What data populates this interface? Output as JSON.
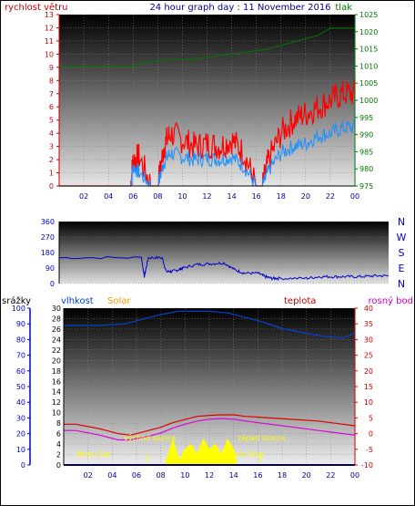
{
  "header": {
    "left_label": "rychlost větru",
    "title": "24 hour graph day : 11 November 2016",
    "right_label": "tlak"
  },
  "panel3_labels": {
    "rain": "srážky",
    "humidity": "vlhkost",
    "solar": "Solar",
    "temp": "teplota",
    "dew": "rosný bod"
  },
  "annotations": {
    "moon_set": "Moon Set",
    "sunrise": "východ slunce",
    "sunset": "západ slunce",
    "moon_rise": "Moon Rise"
  },
  "colors": {
    "wind_left": "#cc0000",
    "title": "#000099",
    "pressure": "#007700",
    "wind_gust": "#ff0000",
    "wind_avg": "#1e90ff",
    "direction": "#0000cc",
    "humidity": "#0044cc",
    "temp": "#dd0000",
    "dew": "#dd00dd",
    "solar": "#ffff00",
    "rain_axis": "#0000cc",
    "temp_axis": "#cc0000"
  },
  "chart_data": [
    {
      "type": "line",
      "x_ticks": [
        "02",
        "04",
        "06",
        "08",
        "10",
        "12",
        "14",
        "16",
        "18",
        "20",
        "22",
        "00"
      ],
      "left_axis": {
        "ticks": [
          "0",
          "1",
          "2",
          "3",
          "4",
          "5",
          "6",
          "7",
          "8",
          "9",
          "10",
          "11",
          "12",
          "13"
        ],
        "ylim": [
          0,
          13
        ]
      },
      "right_axis": {
        "ticks": [
          "975",
          "980",
          "985",
          "990",
          "995",
          "1000",
          "1005",
          "1010",
          "1015",
          "1020",
          "1025"
        ],
        "ylim": [
          975,
          1025
        ]
      },
      "pressure": {
        "x": [
          0,
          6,
          7,
          9,
          11,
          13,
          15,
          17,
          19,
          21,
          22,
          24
        ],
        "y": [
          1010,
          1010,
          1011,
          1012,
          1012,
          1013,
          1014,
          1015,
          1017,
          1019,
          1021,
          1021
        ]
      },
      "gust": {
        "x": [
          0,
          5.8,
          6.0,
          6.5,
          7.5,
          8.0,
          8.5,
          9.0,
          10,
          11,
          12,
          13,
          14,
          15,
          16,
          16.5,
          17,
          18,
          19,
          20,
          21,
          22,
          23,
          24
        ],
        "y": [
          0,
          0,
          2,
          2.2,
          0,
          0,
          3,
          4,
          3.5,
          3,
          3.2,
          3,
          3.5,
          2.5,
          0,
          0,
          2,
          4,
          5,
          5.5,
          6,
          6.5,
          7,
          7
        ]
      },
      "avg": {
        "x": [
          0,
          5.8,
          6.0,
          6.5,
          7.5,
          8.0,
          8.5,
          9.0,
          10,
          11,
          12,
          13,
          14,
          15,
          16,
          16.5,
          17,
          18,
          19,
          20,
          21,
          22,
          23,
          24
        ],
        "y": [
          0,
          0,
          1.5,
          1,
          0,
          0,
          1.8,
          2.5,
          2.2,
          2,
          2.1,
          2,
          2.2,
          1.5,
          0,
          0,
          1.2,
          2.5,
          3,
          3.2,
          3.8,
          4,
          4.4,
          4.5
        ]
      }
    },
    {
      "type": "line",
      "left_axis": {
        "ticks": [
          "0",
          "90",
          "180",
          "270",
          "360"
        ],
        "ylim": [
          0,
          360
        ]
      },
      "right_labels": [
        "N",
        "W",
        "S",
        "E",
        "N"
      ],
      "direction": {
        "x": [
          0,
          6,
          6.2,
          6.5,
          7.5,
          7.8,
          8.2,
          8.7,
          9,
          10,
          11,
          12,
          12.8,
          13.5,
          14.5,
          15,
          15.5,
          16,
          18,
          19,
          20,
          21,
          22,
          23,
          24
        ],
        "y": [
          150,
          150,
          40,
          150,
          150,
          70,
          70,
          80,
          90,
          110,
          115,
          120,
          80,
          60,
          60,
          40,
          30,
          30,
          30,
          40,
          40,
          40,
          40,
          45,
          45
        ]
      }
    },
    {
      "type": "line",
      "axis_humidity": {
        "ticks": [
          "0",
          "10",
          "20",
          "30",
          "40",
          "50",
          "60",
          "70",
          "80",
          "90",
          "100"
        ],
        "ylim": [
          0,
          100
        ]
      },
      "axis_rain": {
        "ticks": [
          "0",
          "2",
          "4",
          "6",
          "8",
          "10",
          "12",
          "14",
          "16",
          "18",
          "20",
          "22",
          "24",
          "26",
          "28",
          "30"
        ],
        "ylim": [
          0,
          30
        ]
      },
      "axis_temp": {
        "ticks": [
          "-10",
          "-5",
          "0",
          "5",
          "10",
          "15",
          "20",
          "25",
          "30",
          "35",
          "40"
        ],
        "ylim": [
          -10,
          40
        ]
      },
      "humidity": {
        "x": [
          0,
          3,
          5,
          6,
          8,
          9.5,
          11,
          12,
          13.5,
          15,
          16.5,
          18,
          20,
          21.5,
          23,
          24
        ],
        "y": [
          89,
          89,
          90,
          92,
          96,
          98,
          98,
          98,
          97,
          94,
          91,
          87,
          84,
          82,
          81,
          84
        ]
      },
      "temp": {
        "x": [
          0,
          1,
          3,
          4.5,
          5.5,
          7,
          8,
          9,
          10,
          11,
          12,
          13,
          14,
          15,
          17,
          19,
          21,
          23,
          24
        ],
        "y": [
          3,
          3,
          1.5,
          0,
          -0.5,
          1,
          2,
          3.5,
          4.5,
          5.5,
          5.8,
          6,
          6,
          5.5,
          5,
          4.5,
          4,
          3,
          2.5
        ]
      },
      "dew": {
        "x": [
          0,
          1,
          3,
          4.5,
          5.5,
          7,
          8,
          9,
          10,
          11,
          12,
          13,
          14,
          15,
          17,
          19,
          21,
          23,
          24
        ],
        "y": [
          1,
          1,
          -0.5,
          -2,
          -2,
          -0.8,
          0.2,
          1.8,
          3,
          4,
          4.6,
          4.8,
          4.6,
          4,
          3,
          2,
          1,
          0,
          -0.5
        ]
      },
      "solar": {
        "x": [
          0,
          8.3,
          8.6,
          9,
          9.5,
          10,
          10.5,
          11,
          11.5,
          12,
          12.5,
          13,
          13.5,
          14,
          14.3,
          24
        ],
        "y": [
          0,
          0,
          2,
          5,
          1,
          3,
          4,
          2,
          5,
          3,
          4,
          2,
          5,
          3,
          0,
          0
        ]
      },
      "rain": {
        "x": [
          0,
          24
        ],
        "y": [
          0,
          0
        ]
      }
    }
  ]
}
